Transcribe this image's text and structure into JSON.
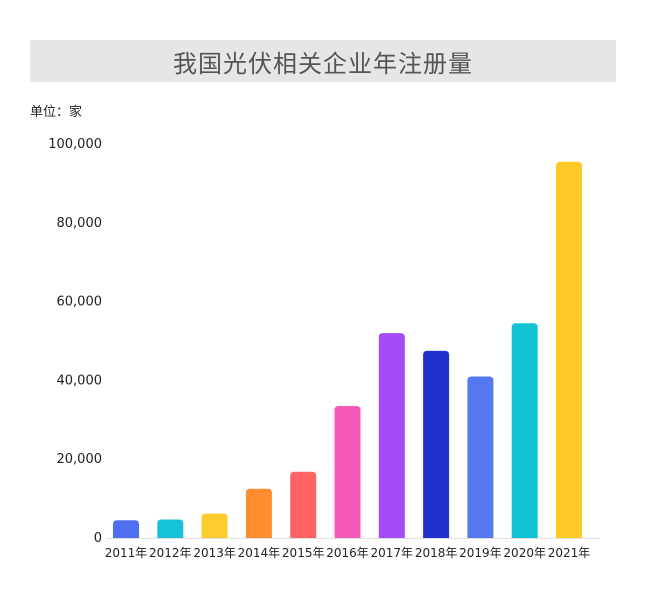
{
  "chart_data": {
    "type": "bar",
    "title": "我国光伏相关企业年注册量",
    "unit_label": "单位：家",
    "categories": [
      "2011年",
      "2012年",
      "2013年",
      "2014年",
      "2015年",
      "2016年",
      "2017年",
      "2018年",
      "2019年",
      "2020年",
      "2021年"
    ],
    "values": [
      4500,
      4700,
      6200,
      12500,
      16800,
      33500,
      52000,
      47500,
      41000,
      54500,
      95500
    ],
    "colors": [
      "#4f6ef0",
      "#17c2d8",
      "#ffcc2e",
      "#ff8c2e",
      "#ff6363",
      "#f65ab8",
      "#a44cf5",
      "#2030cc",
      "#5479ee",
      "#12c3d4",
      "#ffc926"
    ],
    "yticks": [
      0,
      20000,
      40000,
      60000,
      80000,
      100000
    ],
    "ytick_labels": [
      "0",
      "20,000",
      "40,000",
      "60,000",
      "80,000",
      "100,000"
    ],
    "ylim": [
      0,
      100000
    ],
    "grid": false,
    "legend": "none"
  }
}
